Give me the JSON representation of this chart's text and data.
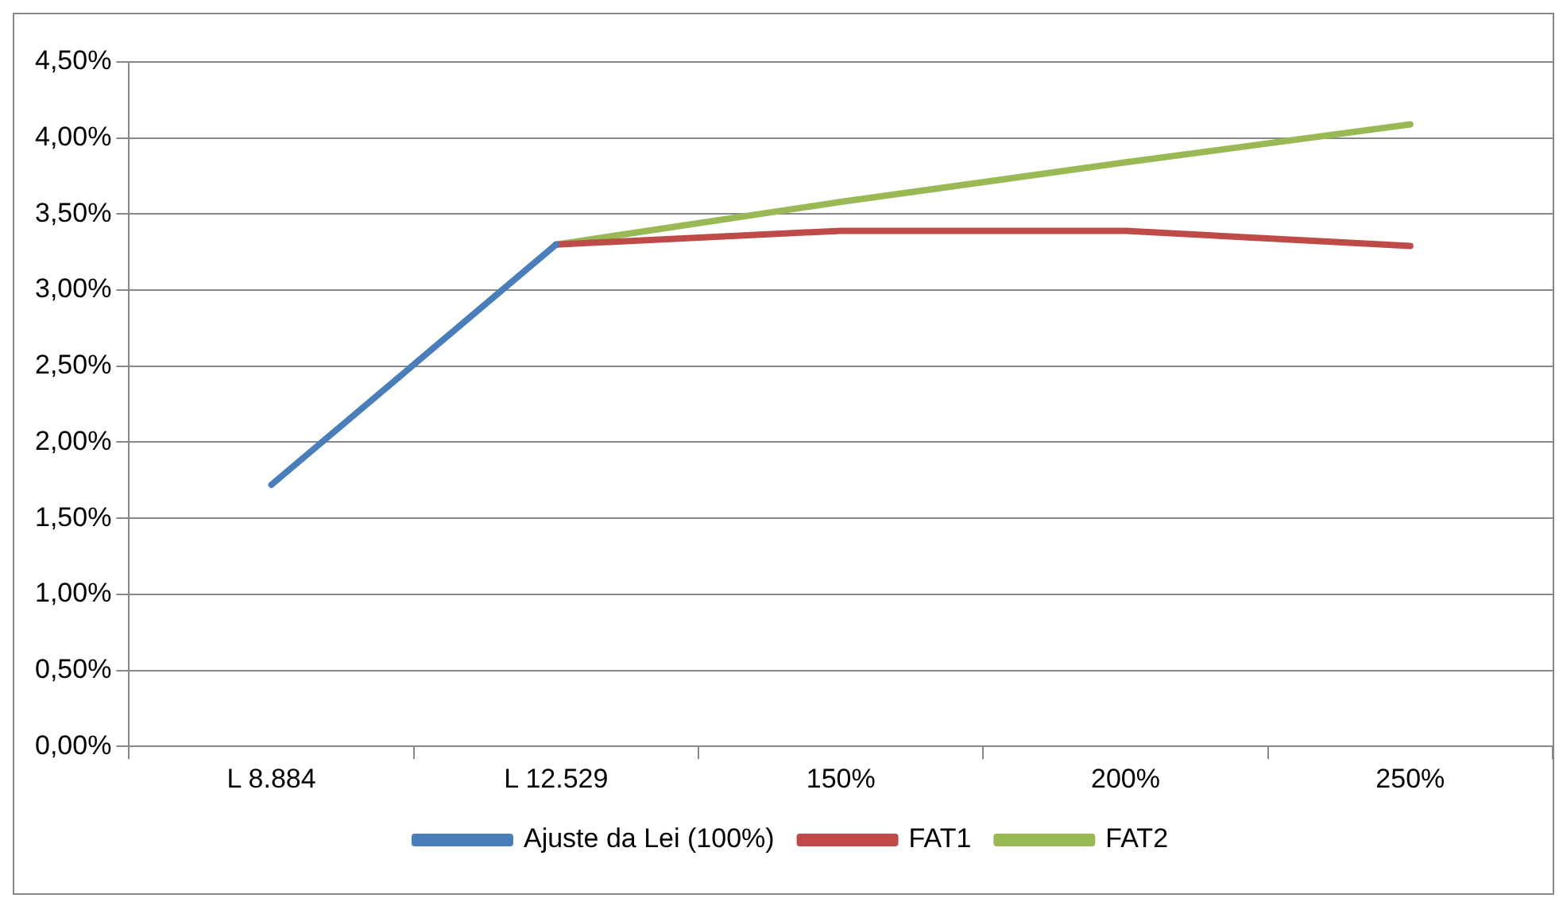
{
  "chart_data": {
    "type": "line",
    "categories": [
      "L 8.884",
      "L 12.529",
      "150%",
      "200%",
      "250%"
    ],
    "series": [
      {
        "name": "Ajuste da Lei (100%)",
        "color": "#4a7ebb",
        "values": [
          1.72,
          3.3,
          null,
          null,
          null
        ]
      },
      {
        "name": "FAT1",
        "color": "#be4b48",
        "values": [
          null,
          3.3,
          3.39,
          3.39,
          3.29
        ]
      },
      {
        "name": "FAT2",
        "color": "#98b954",
        "values": [
          null,
          3.3,
          3.58,
          3.84,
          4.09
        ]
      }
    ],
    "ylim": [
      0,
      4.5
    ],
    "yticks": [
      {
        "value": 0,
        "label": "0,00%"
      },
      {
        "value": 0.5,
        "label": "0,50%"
      },
      {
        "value": 1,
        "label": "1,00%"
      },
      {
        "value": 1.5,
        "label": "1,50%"
      },
      {
        "value": 2,
        "label": "2,00%"
      },
      {
        "value": 2.5,
        "label": "2,50%"
      },
      {
        "value": 3,
        "label": "3,00%"
      },
      {
        "value": 3.5,
        "label": "3,50%"
      },
      {
        "value": 4,
        "label": "4,00%"
      },
      {
        "value": 4.5,
        "label": "4,50%"
      }
    ],
    "grid": "y",
    "legend": "bottom",
    "marker": "none",
    "line_style": "solid"
  }
}
